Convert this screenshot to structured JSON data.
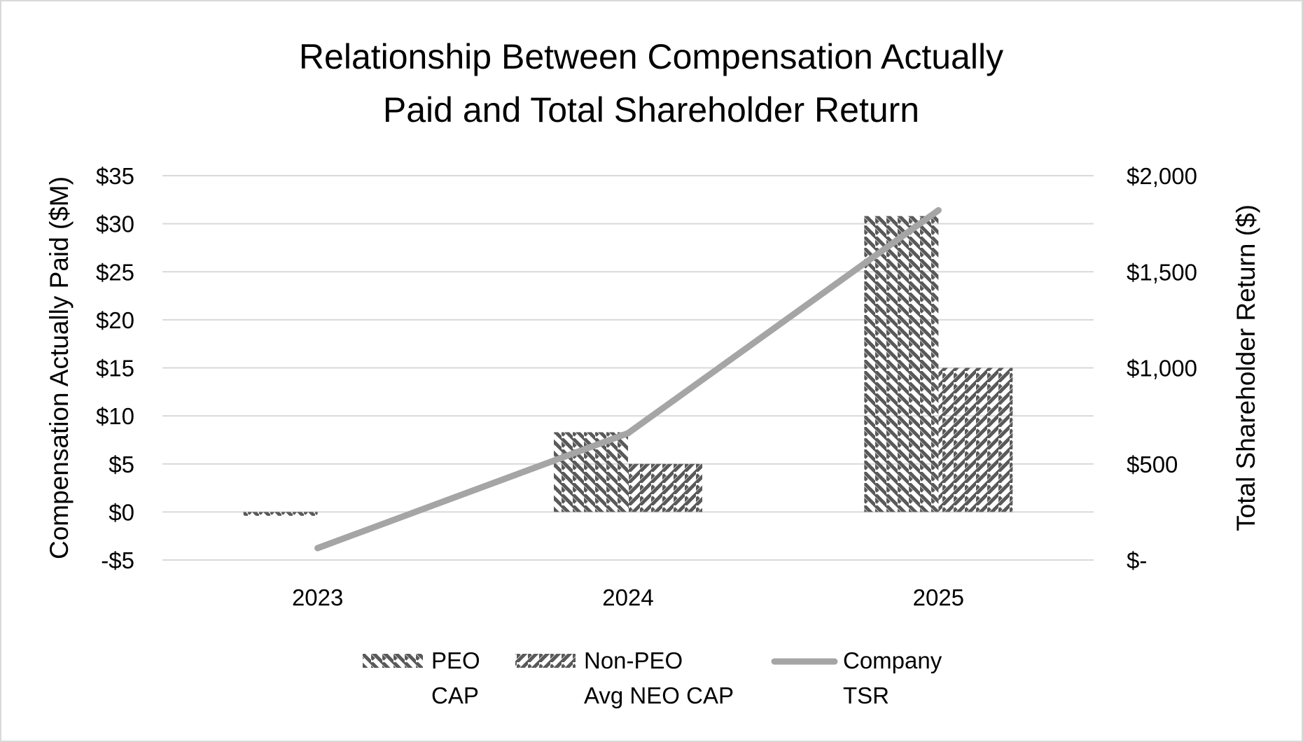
{
  "colors": {
    "pattern": "#595959",
    "line": "#a5a5a5",
    "grid": "#d9d9d9",
    "border": "#d9d9d9",
    "text": "#000000"
  },
  "chart_data": {
    "type": "bar",
    "title_lines": [
      "Relationship Between Compensation Actually",
      "Paid and Total Shareholder Return"
    ],
    "categories": [
      "2023",
      "2024",
      "2025"
    ],
    "ylabel": "Compensation Actually Paid ($M)",
    "y2label": "Total Shareholder Return ($)",
    "ylim": [
      -5,
      35
    ],
    "y2lim": [
      0,
      2000
    ],
    "y_ticks": [
      -5,
      0,
      5,
      10,
      15,
      20,
      25,
      30,
      35
    ],
    "y_tick_labels": [
      "-$5",
      "$0",
      "$5",
      "$10",
      "$15",
      "$20",
      "$25",
      "$30",
      "$35"
    ],
    "y2_ticks": [
      0,
      500,
      1000,
      1500,
      2000
    ],
    "y2_tick_labels": [
      "$-",
      "$500",
      "$1,000",
      "$1,500",
      "$2,000"
    ],
    "grid": true,
    "legend_position": "bottom",
    "series": [
      {
        "name_lines": [
          "PEO",
          "CAP"
        ],
        "type": "bar",
        "axis": "left",
        "pattern": "down-diagonal",
        "values": [
          -0.4,
          8.3,
          30.8
        ]
      },
      {
        "name_lines": [
          "Non-PEO",
          "Avg NEO CAP"
        ],
        "type": "bar",
        "axis": "left",
        "pattern": "up-diagonal",
        "values": [
          0,
          5.0,
          15.0
        ]
      },
      {
        "name_lines": [
          "Company",
          "TSR"
        ],
        "type": "line",
        "axis": "right",
        "values": [
          62,
          660,
          1820
        ]
      }
    ]
  }
}
